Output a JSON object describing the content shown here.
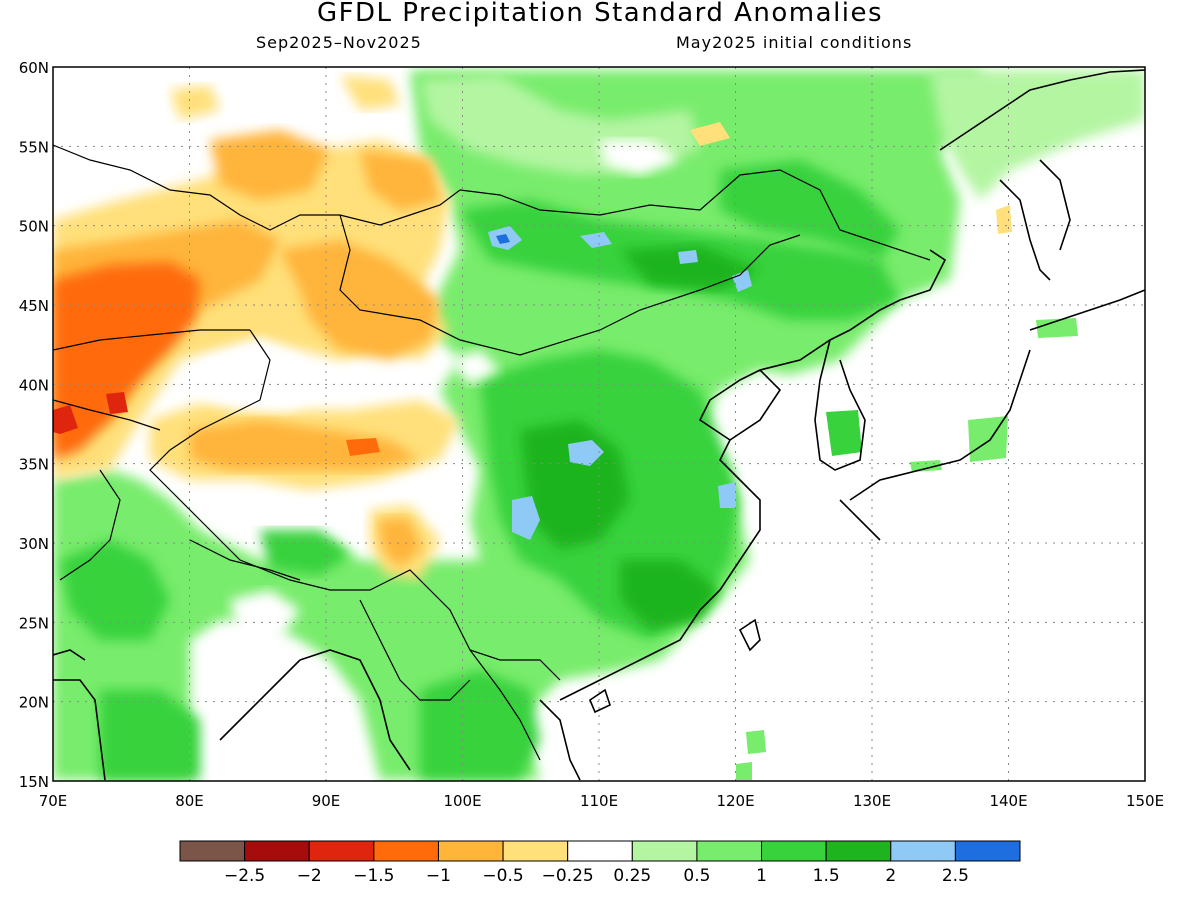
{
  "title": "GFDL Precipitation Standard Anomalies",
  "subtitle_left": "Sep2025–Nov2025",
  "subtitle_right": "May2025 initial conditions",
  "axes": {
    "lon_ticks": [
      "70E",
      "80E",
      "90E",
      "100E",
      "110E",
      "120E",
      "130E",
      "140E",
      "150E"
    ],
    "lat_ticks": [
      "60N",
      "55N",
      "50N",
      "45N",
      "40N",
      "35N",
      "30N",
      "25N",
      "20N",
      "15N"
    ],
    "lon_range": [
      70,
      150
    ],
    "lat_range": [
      15,
      60
    ],
    "grid": "dotted"
  },
  "legend": {
    "placement": "bottom",
    "colors": [
      "#7a5548",
      "#a50d0d",
      "#e0250e",
      "#ff6a0a",
      "#ffb43a",
      "#ffe07a",
      "#ffffff",
      "#b4f5a2",
      "#78ec6c",
      "#37d23c",
      "#1eb41e",
      "#8fcaf6",
      "#1e6ee0"
    ],
    "labels": [
      "−2.5",
      "−2",
      "−1.5",
      "−1",
      "−0.5",
      "−0.25",
      "0.25",
      "0.5",
      "1",
      "1.5",
      "2",
      "2.5"
    ]
  },
  "colors": {
    "wet_light": "#b4f5a2",
    "wet": "#78ec6c",
    "wet_mid": "#37d23c",
    "wet_strong": "#1eb41e",
    "very_wet": "#8fcaf6",
    "extreme_wet": "#1e6ee0",
    "dry_light": "#ffe07a",
    "dry": "#ffb43a",
    "dry_mid": "#ff6a0a",
    "dry_strong": "#e0250e",
    "coast": "#000000"
  }
}
